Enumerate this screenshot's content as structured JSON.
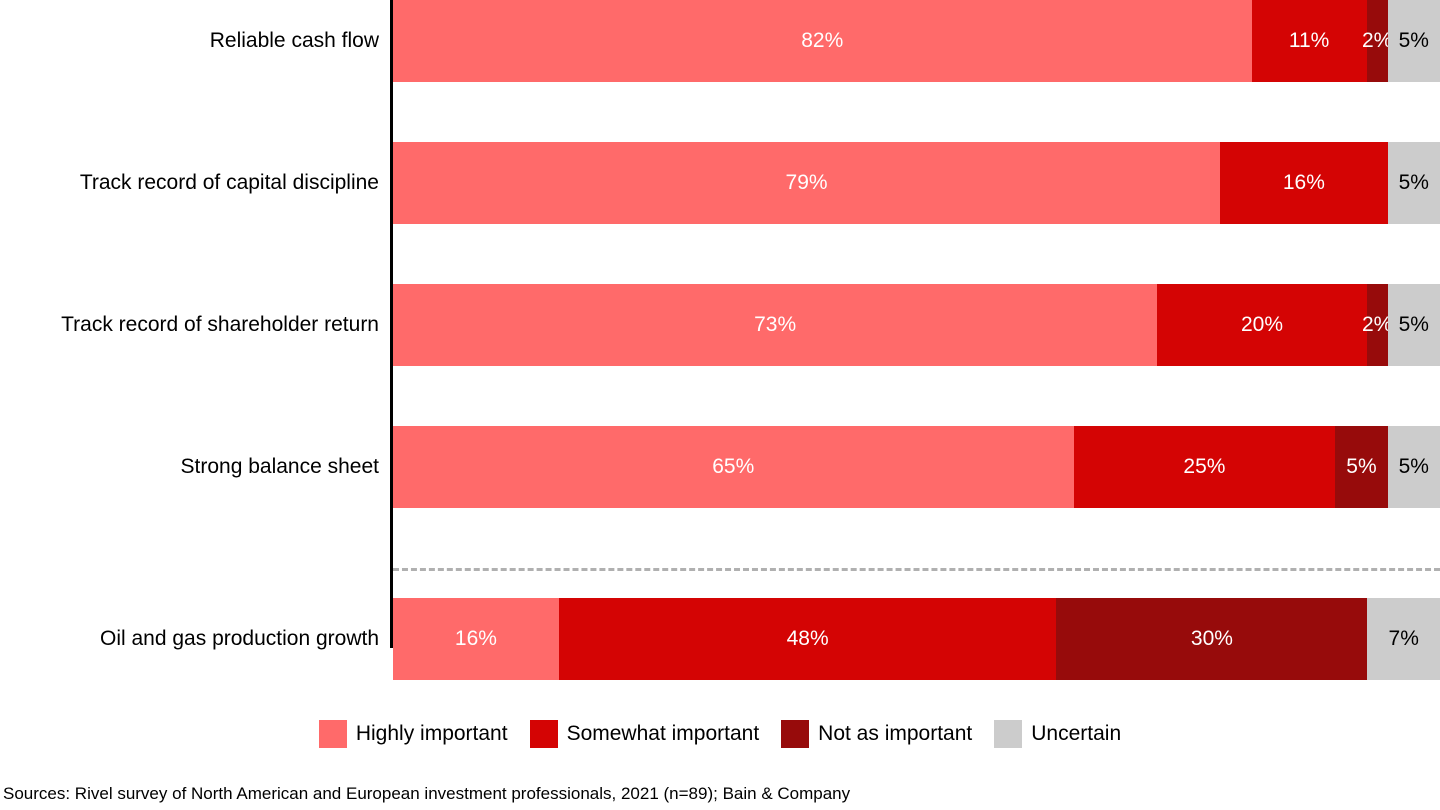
{
  "chart_data": {
    "type": "bar",
    "orientation": "horizontal",
    "stacked": true,
    "unit": "%",
    "xlim": [
      0,
      100
    ],
    "grid": false,
    "legend_position": "bottom",
    "categories": [
      "Reliable cash flow",
      "Track record of capital discipline",
      "Track record of shareholder return",
      "Strong balance sheet",
      "Oil and gas production growth"
    ],
    "series": [
      {
        "name": "Highly important",
        "color": "#FF6A6A",
        "label_color": "#ffffff",
        "values": [
          82,
          79,
          73,
          65,
          16
        ]
      },
      {
        "name": "Somewhat important",
        "color": "#D40404",
        "label_color": "#ffffff",
        "values": [
          11,
          16,
          20,
          25,
          48
        ]
      },
      {
        "name": "Not as important",
        "color": "#970B0B",
        "label_color": "#ffffff",
        "values": [
          2,
          0,
          2,
          5,
          30
        ]
      },
      {
        "name": "Uncertain",
        "color": "#CCCCCC",
        "label_color": "#000000",
        "values": [
          5,
          5,
          5,
          5,
          7
        ]
      }
    ],
    "separator_after_index": 3
  },
  "footer": {
    "source": "Sources: Rivel survey of North American and European investment professionals, 2021 (n=89); Bain & Company"
  }
}
